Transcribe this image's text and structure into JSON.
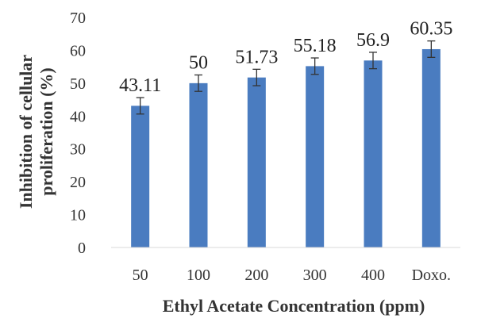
{
  "chart_data": {
    "type": "bar",
    "categories": [
      "50",
      "100",
      "200",
      "300",
      "400",
      "Doxo."
    ],
    "values": [
      43.11,
      50,
      51.73,
      55.18,
      56.9,
      60.35
    ],
    "value_labels": [
      "43.11",
      "50",
      "51.73",
      "55.18",
      "56.9",
      "60.35"
    ],
    "error": [
      2.5,
      2.5,
      2.5,
      2.5,
      2.5,
      2.5
    ],
    "title": "",
    "xlabel": "Ethyl Acetate Concentration (ppm)",
    "ylabel_line1": "Inhibition of cellular",
    "ylabel_line2": "proliferation (%)",
    "ylim": [
      0,
      70
    ],
    "yticks": [
      "0",
      "10",
      "20",
      "30",
      "40",
      "50",
      "60",
      "70"
    ],
    "grid": false,
    "legend": "none",
    "bar_color": "#4a7cc0",
    "error_color": "#333333"
  }
}
